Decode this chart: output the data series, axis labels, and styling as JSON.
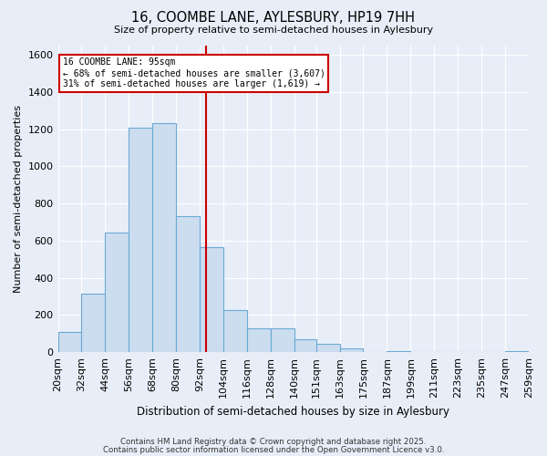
{
  "title": "16, COOMBE LANE, AYLESBURY, HP19 7HH",
  "subtitle": "Size of property relative to semi-detached houses in Aylesbury",
  "xlabel": "Distribution of semi-detached houses by size in Aylesbury",
  "ylabel": "Number of semi-detached properties",
  "bin_labels": [
    "20sqm",
    "32sqm",
    "44sqm",
    "56sqm",
    "68sqm",
    "80sqm",
    "92sqm",
    "104sqm",
    "116sqm",
    "128sqm",
    "140sqm",
    "151sqm",
    "163sqm",
    "175sqm",
    "187sqm",
    "199sqm",
    "211sqm",
    "223sqm",
    "235sqm",
    "247sqm",
    "259sqm"
  ],
  "bar_values": [
    110,
    315,
    645,
    1210,
    1235,
    730,
    565,
    225,
    130,
    130,
    70,
    45,
    20,
    0,
    5,
    0,
    0,
    0,
    0,
    5
  ],
  "bin_edges": [
    20,
    32,
    44,
    56,
    68,
    80,
    92,
    104,
    116,
    128,
    140,
    151,
    163,
    175,
    187,
    199,
    211,
    223,
    235,
    247,
    259
  ],
  "bar_color": "#ccddf0",
  "bar_edge_color": "#6aaad4",
  "vline_x": 95,
  "vline_color": "#cc0000",
  "annotation_title": "16 COOMBE LANE: 95sqm",
  "annotation_line1": "← 68% of semi-detached houses are smaller (3,607)",
  "annotation_line2": "31% of semi-detached houses are larger (1,619) →",
  "annotation_box_facecolor": "#ffffff",
  "annotation_box_edgecolor": "#cc0000",
  "ylim": [
    0,
    1650
  ],
  "yticks": [
    0,
    200,
    400,
    600,
    800,
    1000,
    1200,
    1400,
    1600
  ],
  "background_color": "#e8eef8",
  "grid_color": "#ffffff",
  "footer1": "Contains HM Land Registry data © Crown copyright and database right 2025.",
  "footer2": "Contains public sector information licensed under the Open Government Licence v3.0."
}
